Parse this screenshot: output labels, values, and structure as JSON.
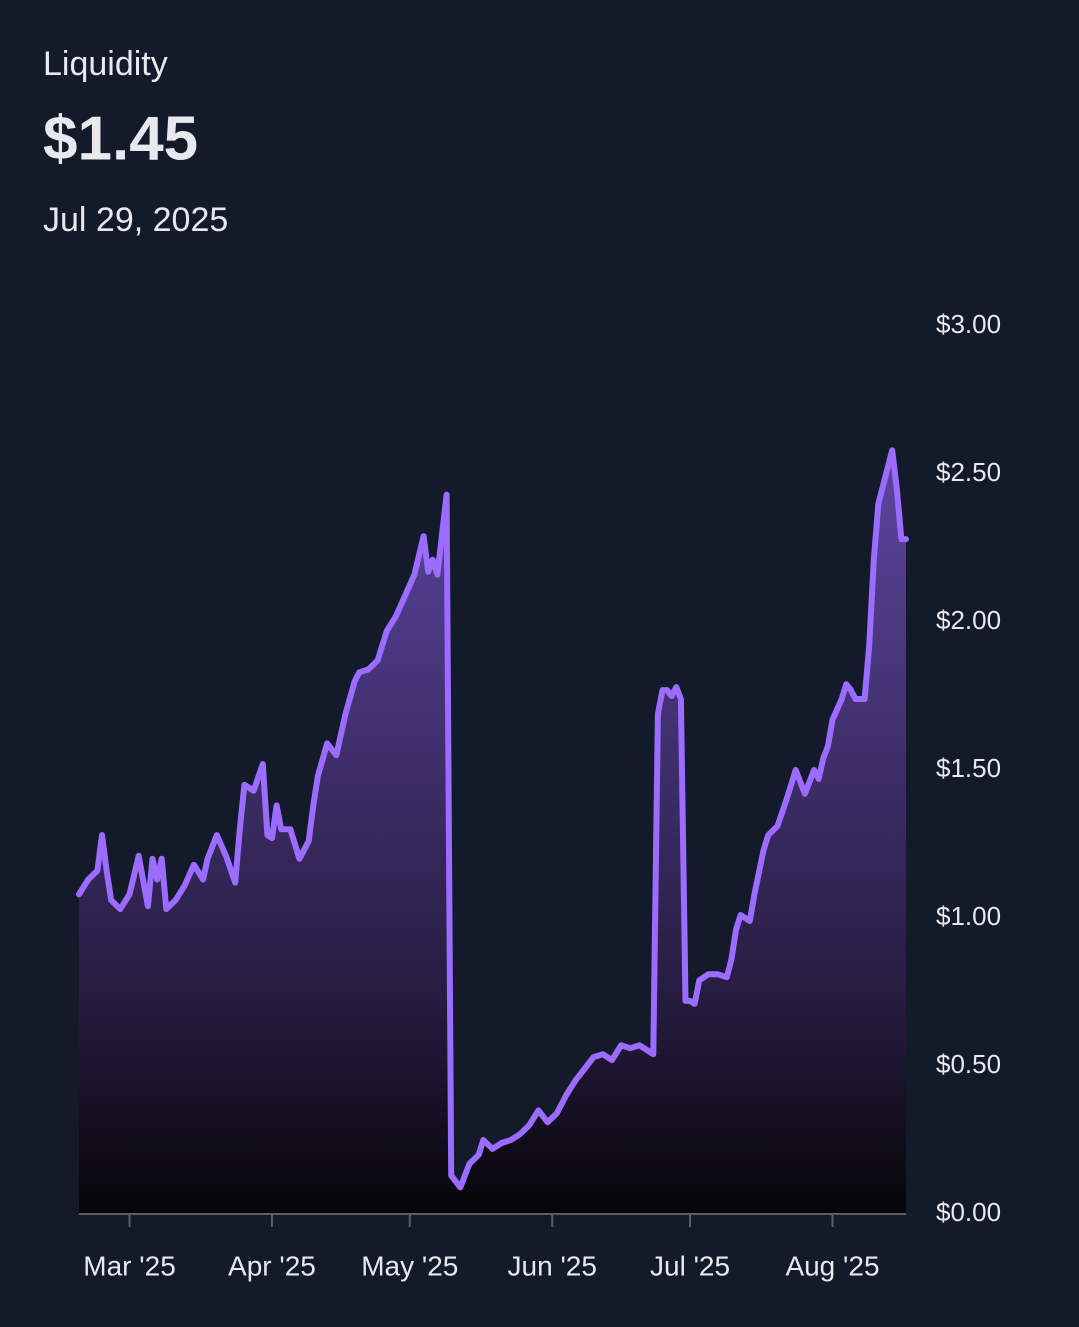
{
  "chart_data": {
    "type": "area",
    "title": "Liquidity",
    "subtitle": "$1.45",
    "date": "Jul 29, 2025",
    "color": "#9b6cff",
    "grid": false,
    "x": [
      0,
      2,
      4,
      5,
      6,
      7,
      9,
      11,
      13,
      15,
      16,
      17,
      18,
      19,
      21,
      23,
      25,
      27,
      28,
      30,
      32,
      34,
      35,
      36,
      38,
      40,
      41,
      42,
      43,
      44,
      46,
      48,
      50,
      51,
      52,
      54,
      56,
      58,
      60,
      61,
      63,
      65,
      67,
      69,
      71,
      73,
      75,
      76,
      77,
      78,
      80,
      81,
      82,
      83,
      85,
      87,
      88,
      90,
      92,
      94,
      96,
      98,
      100,
      102,
      104,
      106,
      108,
      110,
      112,
      114,
      116,
      118,
      120,
      122,
      124,
      125,
      126,
      127,
      128,
      129,
      130,
      131,
      132,
      133,
      134,
      135,
      137,
      139,
      141,
      142,
      143,
      144,
      146,
      147,
      149,
      150,
      152,
      154,
      156,
      158,
      160,
      161,
      162,
      163,
      164,
      166,
      167,
      168,
      169,
      171,
      172,
      173,
      174,
      175,
      177,
      178,
      179,
      180
    ],
    "values": [
      1.08,
      1.13,
      1.16,
      1.28,
      1.16,
      1.06,
      1.03,
      1.08,
      1.21,
      1.04,
      1.2,
      1.13,
      1.2,
      1.03,
      1.06,
      1.11,
      1.18,
      1.13,
      1.2,
      1.28,
      1.21,
      1.12,
      1.3,
      1.45,
      1.43,
      1.52,
      1.28,
      1.27,
      1.38,
      1.3,
      1.3,
      1.2,
      1.26,
      1.38,
      1.48,
      1.59,
      1.55,
      1.69,
      1.8,
      1.83,
      1.84,
      1.87,
      1.97,
      2.02,
      2.09,
      2.16,
      2.29,
      2.17,
      2.21,
      2.16,
      2.43,
      0.13,
      0.11,
      0.09,
      0.17,
      0.2,
      0.25,
      0.22,
      0.24,
      0.25,
      0.27,
      0.3,
      0.35,
      0.31,
      0.34,
      0.4,
      0.45,
      0.49,
      0.53,
      0.54,
      0.52,
      0.57,
      0.56,
      0.57,
      0.55,
      0.54,
      1.69,
      1.77,
      1.77,
      1.75,
      1.78,
      1.74,
      0.72,
      0.72,
      0.71,
      0.79,
      0.81,
      0.81,
      0.8,
      0.86,
      0.96,
      1.01,
      0.99,
      1.08,
      1.23,
      1.28,
      1.31,
      1.4,
      1.5,
      1.42,
      1.5,
      1.47,
      1.54,
      1.58,
      1.67,
      1.74,
      1.79,
      1.77,
      1.74,
      1.74,
      1.92,
      2.21,
      2.4,
      2.46,
      2.58,
      2.45,
      2.28,
      2.28
    ],
    "xlim": [
      0,
      180
    ],
    "xticks": [
      {
        "value": 11,
        "label": "Mar '25"
      },
      {
        "value": 42,
        "label": "Apr '25"
      },
      {
        "value": 72,
        "label": "May '25"
      },
      {
        "value": 103,
        "label": "Jun '25"
      },
      {
        "value": 133,
        "label": "Jul '25"
      },
      {
        "value": 164,
        "label": "Aug '25"
      }
    ],
    "ylim": [
      0,
      3
    ],
    "yticks": [
      {
        "value": 0,
        "label": "$0.00"
      },
      {
        "value": 0.5,
        "label": "$0.50"
      },
      {
        "value": 1,
        "label": "$1.00"
      },
      {
        "value": 1.5,
        "label": "$1.50"
      },
      {
        "value": 2,
        "label": "$2.00"
      },
      {
        "value": 2.5,
        "label": "$2.50"
      },
      {
        "value": 3,
        "label": "$3.00"
      }
    ]
  }
}
